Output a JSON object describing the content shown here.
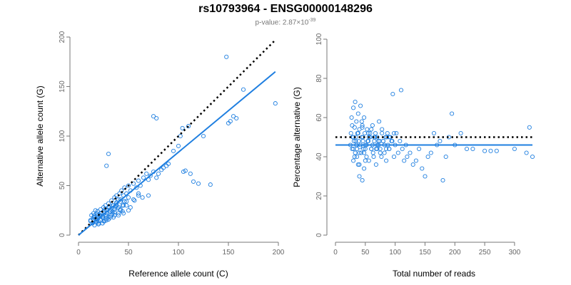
{
  "header": {
    "title": "rs10793964 - ENSG00000148296",
    "subtitle_prefix": "p-value: 2.87×10",
    "subtitle_exp": "-39"
  },
  "colors": {
    "points": "#1f7fe0",
    "fit": "#1f7fe0",
    "reference": "#000000"
  },
  "chart_data": [
    {
      "type": "scatter",
      "xlabel": "Reference allele count (C)",
      "ylabel": "Alternative allele count (G)",
      "xlim": [
        0,
        200
      ],
      "ylim": [
        0,
        200
      ],
      "xticks": [
        0,
        50,
        100,
        150,
        200
      ],
      "yticks": [
        0,
        50,
        100,
        150,
        200
      ],
      "fit_line": {
        "x": [
          0,
          197
        ],
        "y": [
          0,
          165
        ]
      },
      "reference_line": {
        "x": [
          0,
          197
        ],
        "y": [
          0,
          197
        ]
      },
      "grid": false,
      "points": {
        "x": [
          12,
          14,
          15,
          16,
          17,
          18,
          18,
          19,
          20,
          21,
          22,
          22,
          23,
          24,
          25,
          25,
          26,
          27,
          28,
          28,
          29,
          30,
          30,
          31,
          32,
          33,
          34,
          35,
          36,
          37,
          38,
          38,
          40,
          41,
          42,
          43,
          45,
          46,
          48,
          50,
          52,
          55,
          58,
          60,
          62,
          65,
          68,
          70,
          72,
          75,
          78,
          80,
          83,
          85,
          88,
          90,
          95,
          100,
          102,
          104,
          105,
          107,
          110,
          112,
          115,
          120,
          125,
          132,
          148,
          150,
          152,
          155,
          158,
          165,
          197,
          28,
          30,
          75,
          78,
          12,
          13,
          14,
          15,
          16,
          17,
          18,
          19,
          20,
          22,
          24,
          26,
          28,
          30,
          32,
          34,
          36,
          38,
          40,
          42,
          44,
          46,
          20,
          25,
          30,
          35,
          40,
          45,
          50,
          15,
          18,
          22,
          26,
          30,
          34,
          38,
          42,
          46,
          50,
          55,
          60,
          24,
          28,
          32,
          36,
          40,
          44,
          48,
          52,
          56,
          60,
          64,
          70,
          16,
          18,
          20,
          22,
          24,
          26,
          28,
          30,
          33,
          36,
          39,
          42,
          45,
          48
        ],
        "y": [
          14,
          12,
          18,
          20,
          16,
          22,
          14,
          24,
          18,
          20,
          26,
          15,
          22,
          19,
          28,
          17,
          24,
          30,
          20,
          25,
          22,
          32,
          18,
          28,
          26,
          35,
          24,
          30,
          38,
          28,
          33,
          40,
          36,
          42,
          34,
          45,
          40,
          48,
          42,
          50,
          45,
          52,
          48,
          55,
          50,
          58,
          62,
          56,
          60,
          64,
          58,
          62,
          66,
          68,
          70,
          72,
          85,
          90,
          100,
          108,
          64,
          65,
          110,
          62,
          54,
          52,
          100,
          51,
          180,
          113,
          115,
          120,
          118,
          147,
          133,
          70,
          82,
          120,
          118,
          15,
          20,
          12,
          22,
          18,
          25,
          16,
          20,
          14,
          22,
          18,
          26,
          22,
          28,
          24,
          30,
          26,
          32,
          28,
          36,
          30,
          34,
          12,
          14,
          16,
          18,
          20,
          22,
          25,
          16,
          14,
          20,
          24,
          28,
          22,
          30,
          26,
          34,
          38,
          36,
          40,
          12,
          15,
          18,
          20,
          22,
          24,
          30,
          28,
          35,
          42,
          38,
          40,
          10,
          13,
          11,
          15,
          12,
          14,
          17,
          16,
          20,
          23,
          27,
          25,
          30,
          34
        ]
      }
    },
    {
      "type": "scatter",
      "xlabel": "Total number of reads",
      "ylabel": "Percentage alternative (G)",
      "xlim": [
        0,
        330
      ],
      "ylim": [
        0,
        100
      ],
      "xticks": [
        0,
        50,
        100,
        150,
        200,
        250,
        300
      ],
      "yticks": [
        0,
        20,
        40,
        60,
        80,
        100
      ],
      "fit_line": {
        "x": [
          0,
          330
        ],
        "y": [
          46,
          46
        ]
      },
      "reference_line": {
        "x": [
          0,
          330
        ],
        "y": [
          50,
          50
        ]
      },
      "grid": false,
      "points": {
        "x": [
          25,
          26,
          27,
          28,
          29,
          30,
          30,
          31,
          32,
          33,
          33,
          34,
          35,
          35,
          36,
          37,
          38,
          38,
          39,
          40,
          40,
          41,
          42,
          43,
          44,
          45,
          45,
          46,
          47,
          48,
          48,
          49,
          50,
          52,
          53,
          55,
          56,
          58,
          60,
          62,
          63,
          65,
          67,
          68,
          70,
          72,
          73,
          75,
          77,
          78,
          80,
          82,
          84,
          85,
          87,
          88,
          90,
          92,
          95,
          96,
          98,
          100,
          102,
          105,
          108,
          110,
          112,
          115,
          118,
          120,
          125,
          130,
          135,
          140,
          145,
          150,
          155,
          160,
          165,
          170,
          175,
          180,
          185,
          190,
          195,
          200,
          210,
          220,
          230,
          250,
          260,
          270,
          300,
          320,
          325,
          330,
          30,
          35,
          40,
          45,
          50,
          55,
          60,
          65,
          70,
          75,
          80,
          85,
          90,
          30,
          34,
          38,
          42,
          46,
          50,
          54,
          58,
          62,
          66,
          70,
          74,
          78,
          82,
          86,
          90,
          94,
          98,
          28,
          32,
          36,
          40,
          44,
          48,
          52,
          56,
          60,
          64,
          68,
          72
        ],
        "y": [
          46,
          52,
          60,
          44,
          50,
          38,
          65,
          48,
          55,
          42,
          68,
          50,
          46,
          58,
          40,
          52,
          62,
          36,
          48,
          54,
          30,
          45,
          66,
          42,
          50,
          56,
          28,
          48,
          44,
          60,
          34,
          52,
          46,
          40,
          54,
          48,
          38,
          50,
          44,
          56,
          42,
          48,
          52,
          36,
          50,
          46,
          58,
          44,
          40,
          54,
          48,
          42,
          50,
          38,
          52,
          46,
          44,
          50,
          48,
          72,
          40,
          46,
          52,
          42,
          48,
          74,
          44,
          38,
          46,
          40,
          42,
          36,
          38,
          44,
          34,
          30,
          40,
          42,
          52,
          46,
          48,
          28,
          40,
          50,
          62,
          46,
          52,
          44,
          44,
          43,
          43,
          43,
          44,
          42,
          55,
          40,
          50,
          46,
          42,
          55,
          38,
          52,
          44,
          50,
          46,
          42,
          48,
          44,
          50,
          44,
          48,
          52,
          46,
          50,
          44,
          48,
          52,
          46,
          50,
          44,
          48,
          52,
          46,
          50,
          44,
          48,
          52,
          56,
          40,
          44,
          36,
          58,
          42,
          46,
          50,
          54,
          40,
          44,
          48
        ]
      }
    }
  ]
}
